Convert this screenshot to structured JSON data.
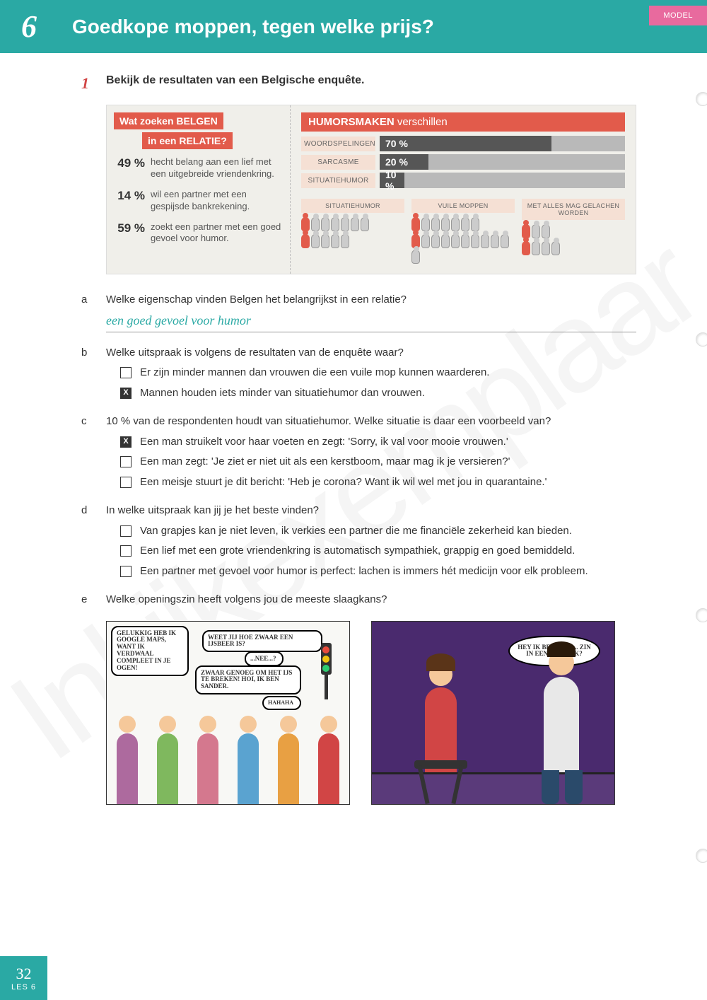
{
  "header": {
    "chapter_num": "6",
    "title": "Goedkope moppen, tegen welke prijs?",
    "model_tag": "MODEL"
  },
  "exercise": {
    "number": "1",
    "prompt": "Bekijk de resultaten van een Belgische enquête."
  },
  "infographic": {
    "left": {
      "tag1_a": "Wat zoeken ",
      "tag1_b": "BELGEN",
      "tag2_a": "in een ",
      "tag2_b": "RELATIE?",
      "stats": [
        {
          "pct": "49 %",
          "text": "hecht belang aan een lief met een uitgebreide vriendenkring."
        },
        {
          "pct": "14 %",
          "text": "wil een partner met een gespijsde bankrekening."
        },
        {
          "pct": "59 %",
          "text": "zoekt een partner met een goed gevoel voor humor."
        }
      ]
    },
    "right": {
      "header_bold": "HUMORSMAKEN",
      "header_rest": " verschillen",
      "bars": [
        {
          "label": "WOORDSPELINGEN",
          "pct_label": "70 %",
          "width": 70
        },
        {
          "label": "SARCASME",
          "pct_label": "20 %",
          "width": 20
        },
        {
          "label": "SITUATIEHUMOR",
          "pct_label": "10 %",
          "width": 10
        }
      ],
      "cols": [
        {
          "label": "SITUATIEHUMOR",
          "row1": [
            1,
            0,
            0,
            0,
            0,
            0,
            0
          ],
          "row2": [
            1,
            0,
            0,
            0,
            0
          ]
        },
        {
          "label": "VUILE MOPPEN",
          "row1": [
            1,
            0,
            0,
            0,
            0,
            0,
            0
          ],
          "row2": [
            1,
            0,
            0,
            0,
            0,
            0,
            0,
            0,
            0,
            0,
            0
          ]
        },
        {
          "label": "MET ALLES MAG GELACHEN WORDEN",
          "row1": [
            1,
            0,
            0
          ],
          "row2": [
            1,
            0,
            0,
            0
          ]
        }
      ]
    }
  },
  "questions": [
    {
      "letter": "a",
      "text": "Welke eigenschap vinden Belgen het belangrijkst in een relatie?",
      "answer": "een goed gevoel voor humor",
      "options": []
    },
    {
      "letter": "b",
      "text": "Welke uitspraak is volgens de resultaten van de enquête waar?",
      "options": [
        {
          "checked": false,
          "text": "Er zijn minder mannen dan vrouwen die een vuile mop kunnen waarderen."
        },
        {
          "checked": true,
          "text": "Mannen houden iets minder van situatiehumor dan vrouwen."
        }
      ]
    },
    {
      "letter": "c",
      "text": "10 % van de respondenten houdt van situatiehumor. Welke situatie is daar een voorbeeld van?",
      "options": [
        {
          "checked": true,
          "text": "Een man struikelt voor haar voeten en zegt: 'Sorry, ik val voor mooie vrouwen.'"
        },
        {
          "checked": false,
          "text": "Een man zegt: 'Je ziet er niet uit als een kerstboom, maar mag ik je versieren?'"
        },
        {
          "checked": false,
          "text": "Een meisje stuurt je dit bericht: 'Heb je corona? Want ik wil wel met jou in quarantaine.'"
        }
      ]
    },
    {
      "letter": "d",
      "text": "In welke uitspraak kan jij je het beste vinden?",
      "options": [
        {
          "checked": false,
          "text": "Van grapjes kan je niet leven, ik verkies een partner die me financiële zekerheid kan bieden."
        },
        {
          "checked": false,
          "text": "Een lief met een grote vriendenkring is automatisch sympathiek, grappig en goed bemiddeld."
        },
        {
          "checked": false,
          "text": "Een partner met gevoel voor humor is perfect: lachen is immers hét medicijn voor elk probleem."
        }
      ]
    },
    {
      "letter": "e",
      "text": "Welke openingszin heeft volgens jou de meeste slaagkans?",
      "options": []
    }
  ],
  "cartoons": {
    "c1": {
      "b1": "GELUKKIG HEB IK GOOGLE MAPS, WANT IK VERDWAAL COMPLEET IN JE OGEN!",
      "b2": "WEET JIJ HOE ZWAAR EEN IJSBEER IS?",
      "b3": "...NEE...?",
      "b4": "ZWAAR GENOEG OM HET IJS TE BREKEN! HOI, IK BEN SANDER.",
      "b5": "HAHAHA"
    },
    "c2": {
      "b1": "HEY IK BEN NICK... ZIN IN EEN PIC-NICK?"
    }
  },
  "footer": {
    "page": "32",
    "les": "LES 6"
  },
  "watermark": "Inkijkexemplaar"
}
